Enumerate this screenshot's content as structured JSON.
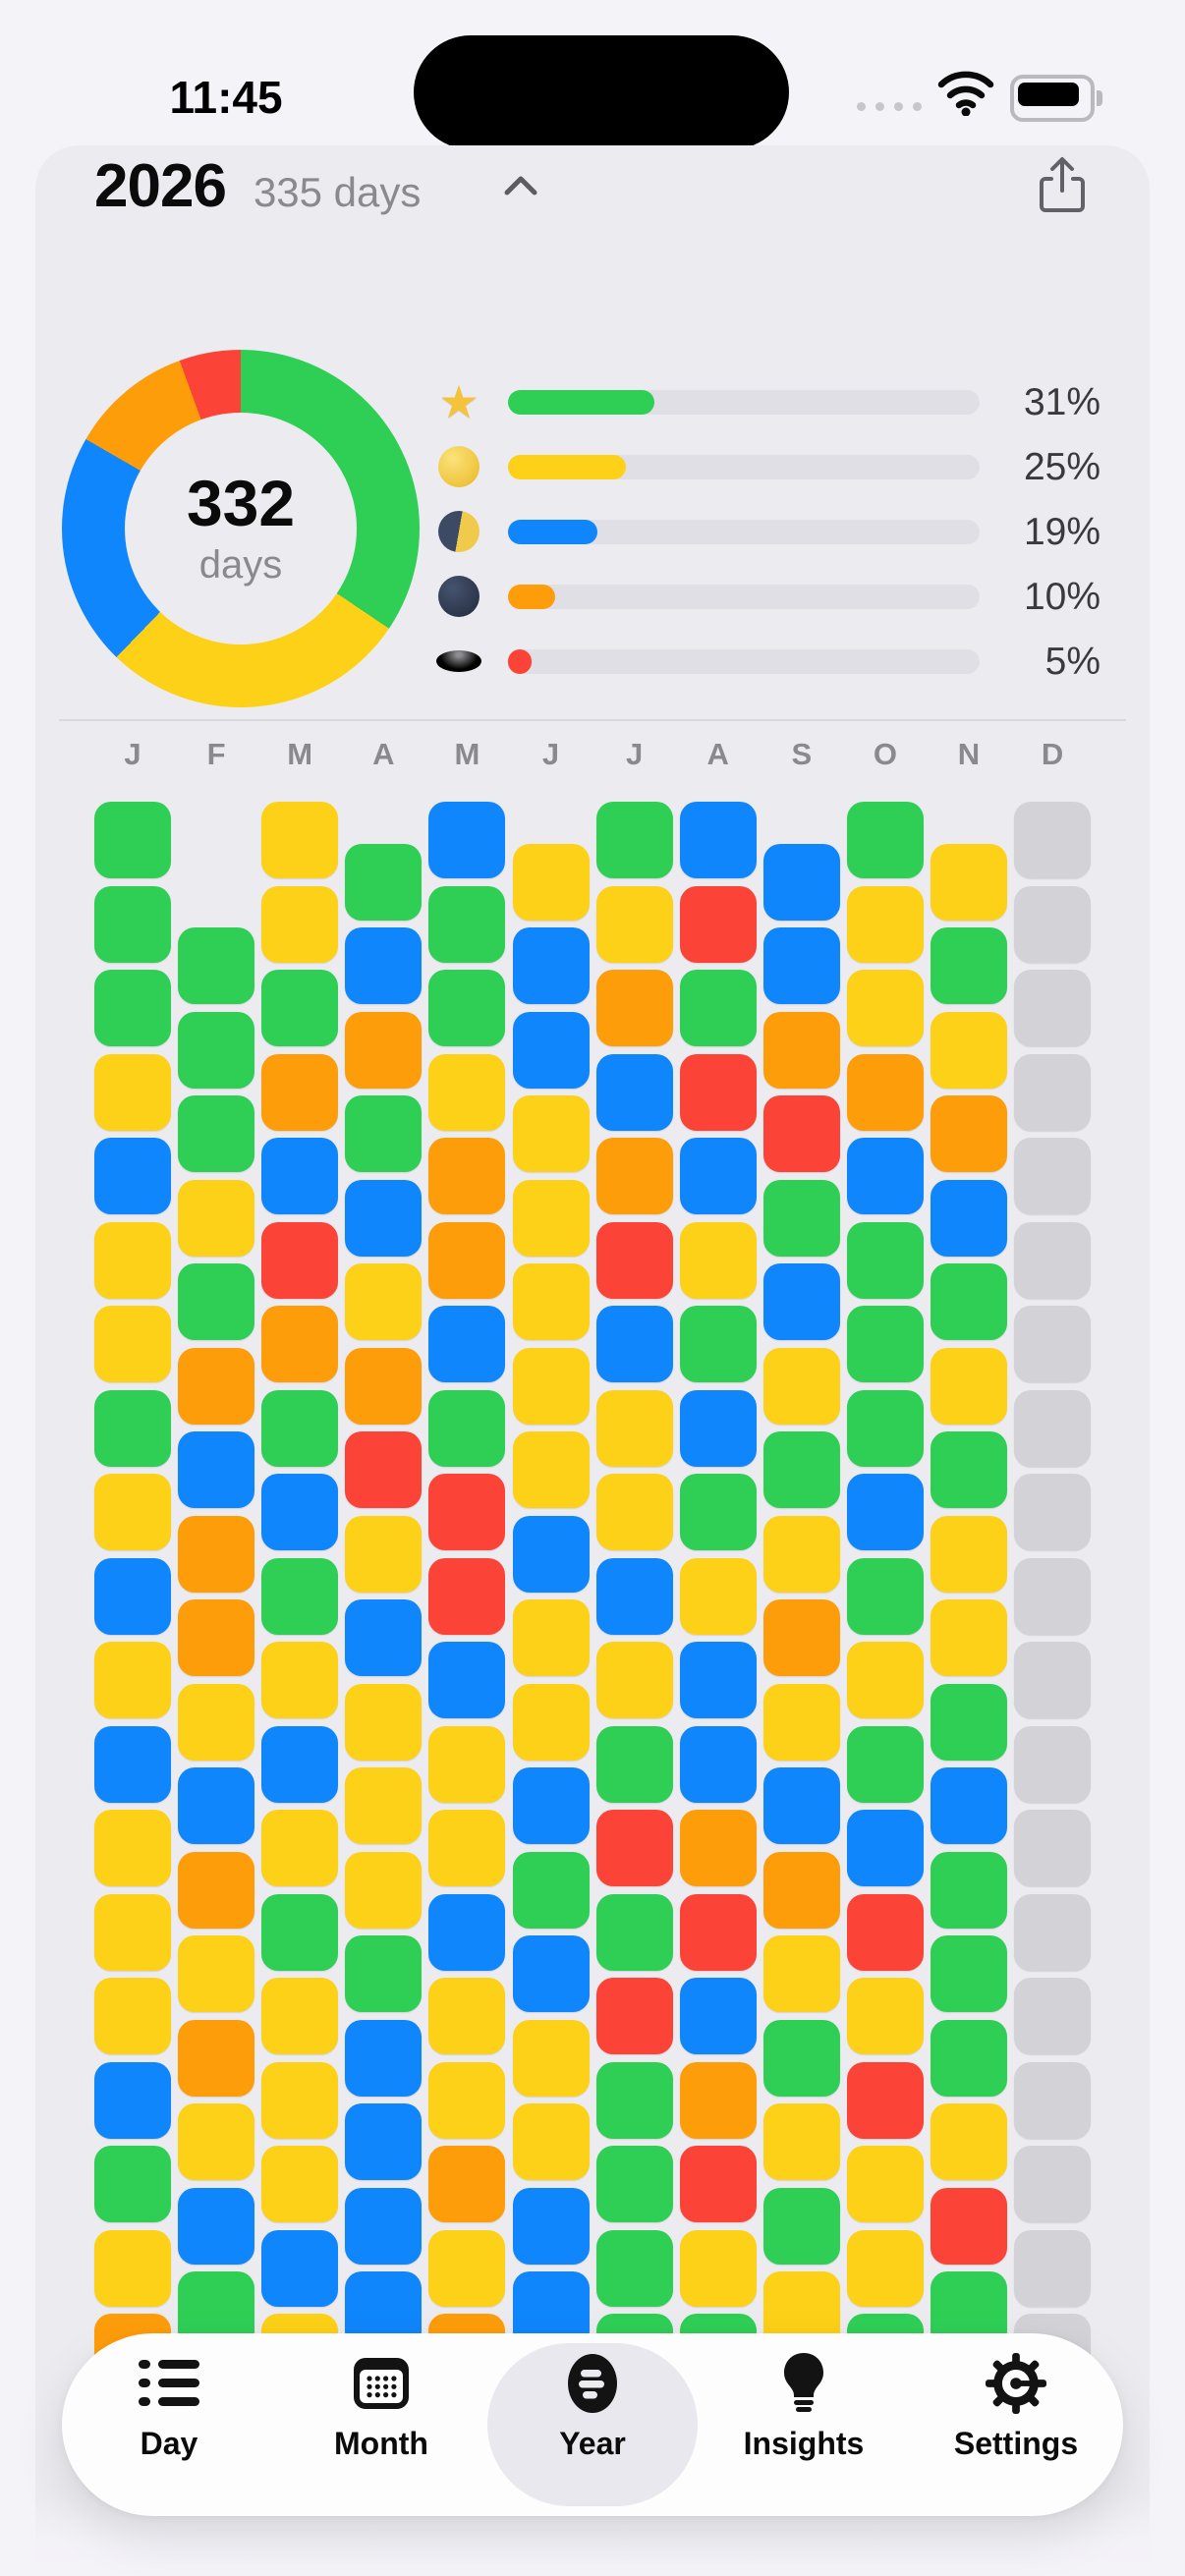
{
  "status_bar": {
    "time": "11:45"
  },
  "header": {
    "year": "2026",
    "days_label": "335 days",
    "share_icon": "share-square-arrow-up",
    "collapse_icon": "chevron-up"
  },
  "donut": {
    "center_value": "332",
    "center_unit": "days"
  },
  "legend": {
    "rows": [
      {
        "icon": "star-icon",
        "percent": "31%",
        "value": 31,
        "color": "#2FCF56"
      },
      {
        "icon": "full-moon-icon",
        "percent": "25%",
        "value": 25,
        "color": "#FDD117"
      },
      {
        "icon": "last-quarter-moon-icon",
        "percent": "19%",
        "value": 19,
        "color": "#1086FC"
      },
      {
        "icon": "new-moon-icon",
        "percent": "10%",
        "value": 10,
        "color": "#FE9D0A"
      },
      {
        "icon": "hole-icon",
        "percent": "5%",
        "value": 5,
        "color": "#FB4437"
      }
    ]
  },
  "chart_data": [
    {
      "type": "pie",
      "title": "2026 mood distribution donut",
      "center_label": "332 days",
      "series": [
        {
          "name": "star",
          "value": 31,
          "color": "#2FCF56"
        },
        {
          "name": "full-moon",
          "value": 25,
          "color": "#FDD117"
        },
        {
          "name": "last-quarter",
          "value": 19,
          "color": "#1086FC"
        },
        {
          "name": "new-moon",
          "value": 10,
          "color": "#FE9D0A"
        },
        {
          "name": "hole",
          "value": 5,
          "color": "#FB4437"
        }
      ],
      "legend_position": "right"
    },
    {
      "type": "heatmap",
      "title": "Year in pixels grid (g=green y=yellow b=blue o=orange r=red x=untracked)",
      "categories": [
        "J",
        "F",
        "M",
        "A",
        "M",
        "J",
        "J",
        "A",
        "S",
        "O",
        "N",
        "D"
      ],
      "series": "calendar.months"
    }
  ],
  "calendar": {
    "cell_colors": {
      "g": "#2FCF56",
      "y": "#FDD117",
      "b": "#1086FC",
      "o": "#FE9D0A",
      "r": "#FB4437",
      "x": "#D2D2D7"
    },
    "months": [
      {
        "label": "J",
        "offset_half_rows": 0,
        "cells": [
          "g",
          "g",
          "g",
          "y",
          "b",
          "y",
          "y",
          "g",
          "y",
          "b",
          "y",
          "b",
          "y",
          "y",
          "y",
          "b",
          "g",
          "y",
          "o"
        ]
      },
      {
        "label": "F",
        "offset_half_rows": 3,
        "cells": [
          "g",
          "g",
          "g",
          "y",
          "g",
          "o",
          "b",
          "o",
          "o",
          "y",
          "b",
          "o",
          "y",
          "o",
          "y",
          "b",
          "g"
        ]
      },
      {
        "label": "M",
        "offset_half_rows": 0,
        "cells": [
          "y",
          "y",
          "g",
          "o",
          "b",
          "r",
          "o",
          "g",
          "b",
          "g",
          "y",
          "b",
          "y",
          "g",
          "y",
          "y",
          "y",
          "b",
          "y"
        ]
      },
      {
        "label": "A",
        "offset_half_rows": 1,
        "cells": [
          "g",
          "b",
          "o",
          "g",
          "b",
          "y",
          "o",
          "r",
          "y",
          "b",
          "y",
          "y",
          "y",
          "g",
          "b",
          "b",
          "b",
          "b"
        ]
      },
      {
        "label": "M",
        "offset_half_rows": 0,
        "cells": [
          "b",
          "g",
          "g",
          "y",
          "o",
          "o",
          "b",
          "g",
          "r",
          "r",
          "b",
          "y",
          "y",
          "b",
          "y",
          "y",
          "o",
          "y",
          "o"
        ]
      },
      {
        "label": "J",
        "offset_half_rows": 1,
        "cells": [
          "y",
          "b",
          "b",
          "y",
          "y",
          "y",
          "y",
          "y",
          "b",
          "y",
          "y",
          "b",
          "g",
          "b",
          "y",
          "y",
          "b",
          "b"
        ]
      },
      {
        "label": "J",
        "offset_half_rows": 0,
        "cells": [
          "g",
          "y",
          "o",
          "b",
          "o",
          "r",
          "b",
          "y",
          "y",
          "b",
          "y",
          "g",
          "r",
          "g",
          "r",
          "g",
          "g",
          "g",
          "g"
        ]
      },
      {
        "label": "A",
        "offset_half_rows": 0,
        "cells": [
          "b",
          "r",
          "g",
          "r",
          "b",
          "y",
          "g",
          "b",
          "g",
          "y",
          "b",
          "b",
          "o",
          "r",
          "b",
          "o",
          "r",
          "y",
          "g"
        ]
      },
      {
        "label": "S",
        "offset_half_rows": 1,
        "cells": [
          "b",
          "b",
          "o",
          "r",
          "g",
          "b",
          "y",
          "g",
          "y",
          "o",
          "y",
          "b",
          "o",
          "y",
          "g",
          "y",
          "g",
          "y"
        ]
      },
      {
        "label": "O",
        "offset_half_rows": 0,
        "cells": [
          "g",
          "y",
          "y",
          "o",
          "b",
          "g",
          "g",
          "g",
          "b",
          "g",
          "y",
          "g",
          "b",
          "r",
          "y",
          "r",
          "y",
          "y",
          "g"
        ]
      },
      {
        "label": "N",
        "offset_half_rows": 1,
        "cells": [
          "y",
          "g",
          "y",
          "o",
          "b",
          "g",
          "y",
          "g",
          "y",
          "y",
          "g",
          "b",
          "g",
          "g",
          "g",
          "y",
          "r",
          "g"
        ]
      },
      {
        "label": "D",
        "offset_half_rows": 0,
        "cells": [
          "x",
          "x",
          "x",
          "x",
          "x",
          "x",
          "x",
          "x",
          "x",
          "x",
          "x",
          "x",
          "x",
          "x",
          "x",
          "x",
          "x",
          "x",
          "x"
        ]
      }
    ]
  },
  "tab_bar": {
    "active": "Year",
    "items": [
      {
        "label": "Day",
        "icon": "list-bullet-icon"
      },
      {
        "label": "Month",
        "icon": "calendar-icon"
      },
      {
        "label": "Year",
        "icon": "year-pixels-logo-icon"
      },
      {
        "label": "Insights",
        "icon": "lightbulb-icon"
      },
      {
        "label": "Settings",
        "icon": "gear-icon"
      }
    ]
  }
}
